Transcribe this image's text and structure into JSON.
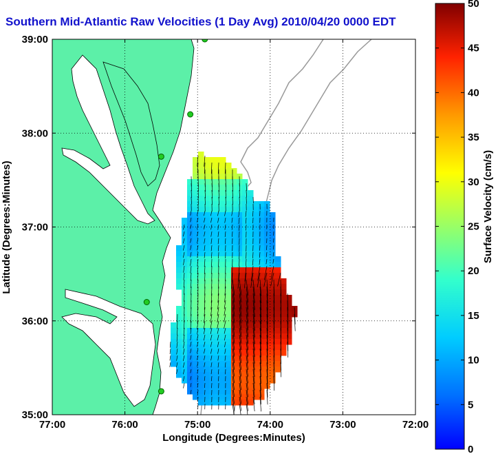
{
  "title": "Southern Mid-Atlantic Raw Velocities (1 Day Avg) 2010/04/20 0000 EDT",
  "xaxis": {
    "label": "Longitude (Degrees:Minutes)",
    "ticks": [
      "77:00",
      "76:00",
      "75:00",
      "74:00",
      "73:00",
      "72:00"
    ],
    "range": [
      -77,
      -72
    ]
  },
  "yaxis": {
    "label": "Latitude (Degrees:Minutes)",
    "ticks": [
      "35:00",
      "36:00",
      "37:00",
      "38:00",
      "39:00"
    ],
    "range": [
      35,
      39
    ]
  },
  "colorbar": {
    "label": "Surface Velocity (cm/s)",
    "ticks": [
      "0",
      "5",
      "10",
      "15",
      "20",
      "25",
      "30",
      "35",
      "40",
      "45",
      "50"
    ],
    "range": [
      0,
      50
    ],
    "colormap": "jet"
  },
  "colors": {
    "land": "#5cf0a8",
    "water": "#ffffff",
    "coast_line": "#000000",
    "bathymetry": "#999999",
    "sites": "#22cc22",
    "title": "#1111cc"
  },
  "station_markers": [
    {
      "lon": -74.9,
      "lat": 39.0
    },
    {
      "lon": -75.1,
      "lat": 38.2
    },
    {
      "lon": -75.5,
      "lat": 37.75
    },
    {
      "lon": -75.7,
      "lat": 36.2
    },
    {
      "lon": -75.5,
      "lat": 35.25
    }
  ]
}
